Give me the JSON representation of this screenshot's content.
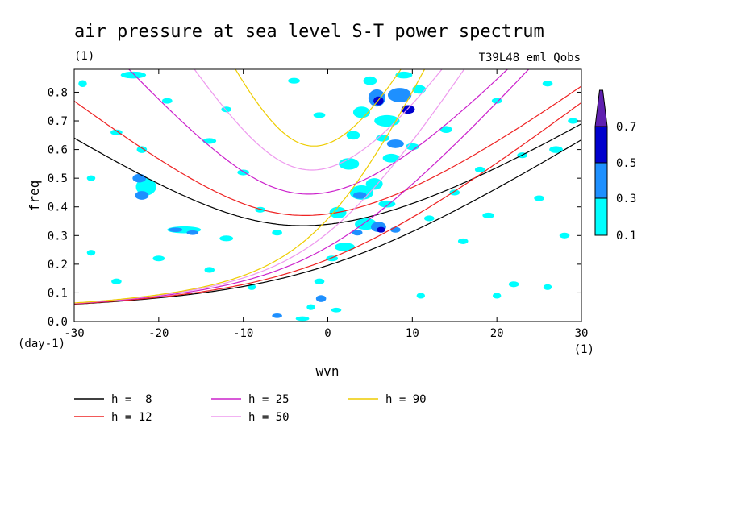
{
  "chart_data": {
    "type": "heatmap",
    "title": "air pressure at sea level S-T power spectrum",
    "subtitle_left": "(1)",
    "subtitle_right": "T39L48_eml_Qobs",
    "xlabel": "wvn",
    "ylabel": "freq",
    "x_unit": "(1)",
    "y_unit": "(day-1)",
    "xlim": [
      -30,
      30
    ],
    "ylim": [
      0,
      0.88
    ],
    "x_ticks": [
      -30,
      -20,
      -10,
      0,
      10,
      20,
      30
    ],
    "x_tick_labels": [
      "-30",
      "-20",
      "-10",
      "0",
      "10",
      "20",
      "30"
    ],
    "y_ticks": [
      0,
      0.1,
      0.2,
      0.3,
      0.4,
      0.5,
      0.6,
      0.7,
      0.8
    ],
    "y_tick_labels": [
      "0.0",
      "0.1",
      "0.2",
      "0.3",
      "0.4",
      "0.5",
      "0.6",
      "0.7",
      "0.8"
    ],
    "colorbar": {
      "levels": [
        "0.1",
        "0.3",
        "0.5",
        "0.7"
      ],
      "colors": [
        "#00ffff",
        "#1e90ff",
        "#0000cd",
        "#6020b0"
      ]
    },
    "contour_patches": [
      {
        "x": -29,
        "y": 0.83,
        "rx": 0.5,
        "ry": 0.012,
        "level": 0
      },
      {
        "x": -25,
        "y": 0.66,
        "rx": 0.7,
        "ry": 0.01,
        "level": 0
      },
      {
        "x": -28,
        "y": 0.5,
        "rx": 0.5,
        "ry": 0.01,
        "level": 0
      },
      {
        "x": -22,
        "y": 0.6,
        "rx": 0.6,
        "ry": 0.012,
        "level": 0
      },
      {
        "x": -23,
        "y": 0.86,
        "rx": 1.5,
        "ry": 0.012,
        "level": 0
      },
      {
        "x": -19,
        "y": 0.77,
        "rx": 0.6,
        "ry": 0.01,
        "level": 0
      },
      {
        "x": -22.3,
        "y": 0.5,
        "rx": 0.8,
        "ry": 0.015,
        "level": 1
      },
      {
        "x": -22,
        "y": 0.44,
        "rx": 0.8,
        "ry": 0.015,
        "level": 1
      },
      {
        "x": -21.5,
        "y": 0.47,
        "rx": 1.2,
        "ry": 0.03,
        "level": 0
      },
      {
        "x": -18,
        "y": 0.32,
        "rx": 0.8,
        "ry": 0.008,
        "level": 1
      },
      {
        "x": -16,
        "y": 0.31,
        "rx": 0.7,
        "ry": 0.008,
        "level": 1
      },
      {
        "x": -17,
        "y": 0.32,
        "rx": 2.0,
        "ry": 0.012,
        "level": 0
      },
      {
        "x": -14,
        "y": 0.63,
        "rx": 0.8,
        "ry": 0.01,
        "level": 0
      },
      {
        "x": -12,
        "y": 0.74,
        "rx": 0.6,
        "ry": 0.01,
        "level": 0
      },
      {
        "x": -10,
        "y": 0.52,
        "rx": 0.7,
        "ry": 0.01,
        "level": 0
      },
      {
        "x": -8,
        "y": 0.39,
        "rx": 0.6,
        "ry": 0.01,
        "level": 0
      },
      {
        "x": -12,
        "y": 0.29,
        "rx": 0.8,
        "ry": 0.01,
        "level": 0
      },
      {
        "x": -6,
        "y": 0.31,
        "rx": 0.6,
        "ry": 0.01,
        "level": 0
      },
      {
        "x": -4,
        "y": 0.84,
        "rx": 0.7,
        "ry": 0.01,
        "level": 0
      },
      {
        "x": -1,
        "y": 0.72,
        "rx": 0.7,
        "ry": 0.01,
        "level": 0
      },
      {
        "x": 1.2,
        "y": 0.38,
        "rx": 1.0,
        "ry": 0.02,
        "level": 0
      },
      {
        "x": 2.5,
        "y": 0.55,
        "rx": 1.2,
        "ry": 0.02,
        "level": 0
      },
      {
        "x": 3,
        "y": 0.65,
        "rx": 0.8,
        "ry": 0.015,
        "level": 0
      },
      {
        "x": 4,
        "y": 0.73,
        "rx": 1.0,
        "ry": 0.02,
        "level": 0
      },
      {
        "x": 5.8,
        "y": 0.78,
        "rx": 1.0,
        "ry": 0.03,
        "level": 1
      },
      {
        "x": 6,
        "y": 0.77,
        "rx": 0.6,
        "ry": 0.015,
        "level": 2
      },
      {
        "x": 5,
        "y": 0.84,
        "rx": 0.8,
        "ry": 0.015,
        "level": 0
      },
      {
        "x": 8.5,
        "y": 0.79,
        "rx": 1.4,
        "ry": 0.025,
        "level": 1
      },
      {
        "x": 9.5,
        "y": 0.74,
        "rx": 0.8,
        "ry": 0.015,
        "level": 2
      },
      {
        "x": 9,
        "y": 0.86,
        "rx": 1.0,
        "ry": 0.012,
        "level": 0
      },
      {
        "x": 10.8,
        "y": 0.81,
        "rx": 0.8,
        "ry": 0.015,
        "level": 0
      },
      {
        "x": 7,
        "y": 0.7,
        "rx": 1.5,
        "ry": 0.02,
        "level": 0
      },
      {
        "x": 8,
        "y": 0.62,
        "rx": 1.0,
        "ry": 0.015,
        "level": 1
      },
      {
        "x": 6.5,
        "y": 0.64,
        "rx": 0.8,
        "ry": 0.012,
        "level": 0
      },
      {
        "x": 7.5,
        "y": 0.57,
        "rx": 1.0,
        "ry": 0.015,
        "level": 0
      },
      {
        "x": 10,
        "y": 0.61,
        "rx": 0.8,
        "ry": 0.012,
        "level": 0
      },
      {
        "x": 5.5,
        "y": 0.48,
        "rx": 1.0,
        "ry": 0.02,
        "level": 0
      },
      {
        "x": 3.8,
        "y": 0.44,
        "rx": 0.8,
        "ry": 0.012,
        "level": 1
      },
      {
        "x": 4,
        "y": 0.45,
        "rx": 1.4,
        "ry": 0.025,
        "level": 0
      },
      {
        "x": 7,
        "y": 0.41,
        "rx": 1.0,
        "ry": 0.012,
        "level": 0
      },
      {
        "x": 4.5,
        "y": 0.34,
        "rx": 1.3,
        "ry": 0.02,
        "level": 0
      },
      {
        "x": 6,
        "y": 0.33,
        "rx": 0.9,
        "ry": 0.018,
        "level": 1
      },
      {
        "x": 6.3,
        "y": 0.32,
        "rx": 0.5,
        "ry": 0.01,
        "level": 2
      },
      {
        "x": 8,
        "y": 0.32,
        "rx": 0.6,
        "ry": 0.01,
        "level": 1
      },
      {
        "x": 3.5,
        "y": 0.31,
        "rx": 0.6,
        "ry": 0.01,
        "level": 1
      },
      {
        "x": 2,
        "y": 0.26,
        "rx": 1.2,
        "ry": 0.015,
        "level": 0
      },
      {
        "x": 0.5,
        "y": 0.22,
        "rx": 0.7,
        "ry": 0.01,
        "level": 0
      },
      {
        "x": -1,
        "y": 0.14,
        "rx": 0.6,
        "ry": 0.01,
        "level": 0
      },
      {
        "x": -0.8,
        "y": 0.08,
        "rx": 0.6,
        "ry": 0.012,
        "level": 1
      },
      {
        "x": -2,
        "y": 0.05,
        "rx": 0.5,
        "ry": 0.01,
        "level": 0
      },
      {
        "x": -6,
        "y": 0.02,
        "rx": 0.6,
        "ry": 0.008,
        "level": 1
      },
      {
        "x": -3,
        "y": 0.01,
        "rx": 0.8,
        "ry": 0.008,
        "level": 0
      },
      {
        "x": 1,
        "y": 0.04,
        "rx": 0.6,
        "ry": 0.008,
        "level": 0
      },
      {
        "x": 12,
        "y": 0.36,
        "rx": 0.6,
        "ry": 0.01,
        "level": 0
      },
      {
        "x": 14,
        "y": 0.67,
        "rx": 0.7,
        "ry": 0.012,
        "level": 0
      },
      {
        "x": 15,
        "y": 0.45,
        "rx": 0.6,
        "ry": 0.01,
        "level": 0
      },
      {
        "x": 16,
        "y": 0.28,
        "rx": 0.6,
        "ry": 0.01,
        "level": 0
      },
      {
        "x": 18,
        "y": 0.53,
        "rx": 0.6,
        "ry": 0.01,
        "level": 0
      },
      {
        "x": 19,
        "y": 0.37,
        "rx": 0.7,
        "ry": 0.01,
        "level": 0
      },
      {
        "x": 20,
        "y": 0.77,
        "rx": 0.6,
        "ry": 0.01,
        "level": 0
      },
      {
        "x": 22,
        "y": 0.13,
        "rx": 0.6,
        "ry": 0.01,
        "level": 0
      },
      {
        "x": 23,
        "y": 0.58,
        "rx": 0.6,
        "ry": 0.01,
        "level": 0
      },
      {
        "x": 25,
        "y": 0.43,
        "rx": 0.6,
        "ry": 0.01,
        "level": 0
      },
      {
        "x": 26,
        "y": 0.83,
        "rx": 0.6,
        "ry": 0.01,
        "level": 0
      },
      {
        "x": 27,
        "y": 0.6,
        "rx": 0.8,
        "ry": 0.012,
        "level": 0
      },
      {
        "x": 29,
        "y": 0.7,
        "rx": 0.6,
        "ry": 0.01,
        "level": 0
      },
      {
        "x": 28,
        "y": 0.3,
        "rx": 0.6,
        "ry": 0.01,
        "level": 0
      },
      {
        "x": -25,
        "y": 0.14,
        "rx": 0.6,
        "ry": 0.01,
        "level": 0
      },
      {
        "x": -20,
        "y": 0.22,
        "rx": 0.7,
        "ry": 0.01,
        "level": 0
      },
      {
        "x": -28,
        "y": 0.24,
        "rx": 0.5,
        "ry": 0.01,
        "level": 0
      },
      {
        "x": -14,
        "y": 0.18,
        "rx": 0.6,
        "ry": 0.01,
        "level": 0
      },
      {
        "x": -9,
        "y": 0.12,
        "rx": 0.5,
        "ry": 0.01,
        "level": 0
      },
      {
        "x": 11,
        "y": 0.09,
        "rx": 0.5,
        "ry": 0.01,
        "level": 0
      },
      {
        "x": 20,
        "y": 0.09,
        "rx": 0.5,
        "ry": 0.01,
        "level": 0
      },
      {
        "x": 26,
        "y": 0.12,
        "rx": 0.5,
        "ry": 0.01,
        "level": 0
      }
    ],
    "series": [
      {
        "name": "h =  8",
        "color": "#000000",
        "h": 8
      },
      {
        "name": "h = 12",
        "color": "#ee2222",
        "h": 12
      },
      {
        "name": "h = 25",
        "color": "#cc22cc",
        "h": 25
      },
      {
        "name": "h = 50",
        "color": "#ee99ee",
        "h": 50
      },
      {
        "name": "h = 90",
        "color": "#eecc00",
        "h": 90
      }
    ]
  }
}
